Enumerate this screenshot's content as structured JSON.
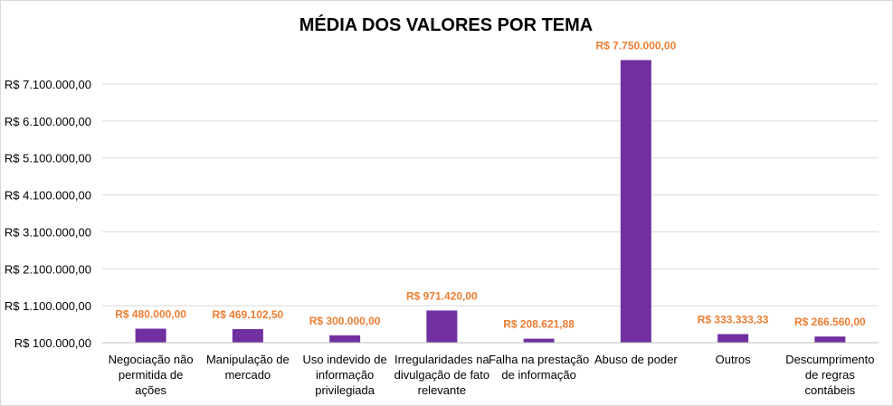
{
  "chart_data": {
    "type": "bar",
    "title": "MÉDIA DOS VALORES POR TEMA",
    "xlabel": "",
    "ylabel": "",
    "categories": [
      [
        "Negociação não",
        "permitida de",
        "ações"
      ],
      [
        "Manipulação de",
        "mercado"
      ],
      [
        "Uso indevido de",
        "informação",
        "privilegiada"
      ],
      [
        "Irregularidades na",
        "divulgação de fato",
        "relevante"
      ],
      [
        "Falha na prestação",
        "de informação"
      ],
      [
        "Abuso de poder"
      ],
      [
        "Outros"
      ],
      [
        "Descumprimento",
        "de regras",
        "contábeis"
      ]
    ],
    "values": [
      480000.0,
      469102.5,
      300000.0,
      971420.0,
      208621.88,
      7750000.0,
      333333.33,
      266560.0
    ],
    "data_labels": [
      "R$ 480.000,00",
      "R$ 469.102,50",
      "R$ 300.000,00",
      "R$ 971.420,00",
      "R$ 208.621,88",
      "R$ 7.750.000,00",
      "R$ 333.333,33",
      "R$ 266.560,00"
    ],
    "ylim": [
      100000,
      7750000
    ],
    "yticks": [
      100000,
      1100000,
      2100000,
      3100000,
      4100000,
      5100000,
      6100000,
      7100000
    ],
    "ytick_labels": [
      "R$ 100.000,00",
      "R$ 1.100.000,00",
      "R$ 2.100.000,00",
      "R$ 3.100.000,00",
      "R$ 4.100.000,00",
      "R$ 5.100.000,00",
      "R$ 6.100.000,00",
      "R$ 7.100.000,00"
    ],
    "grid": true,
    "legend": "none",
    "colors": {
      "bar": "#7030a0",
      "data_label": "#ed7d31",
      "grid": "#d9d9d9"
    }
  }
}
